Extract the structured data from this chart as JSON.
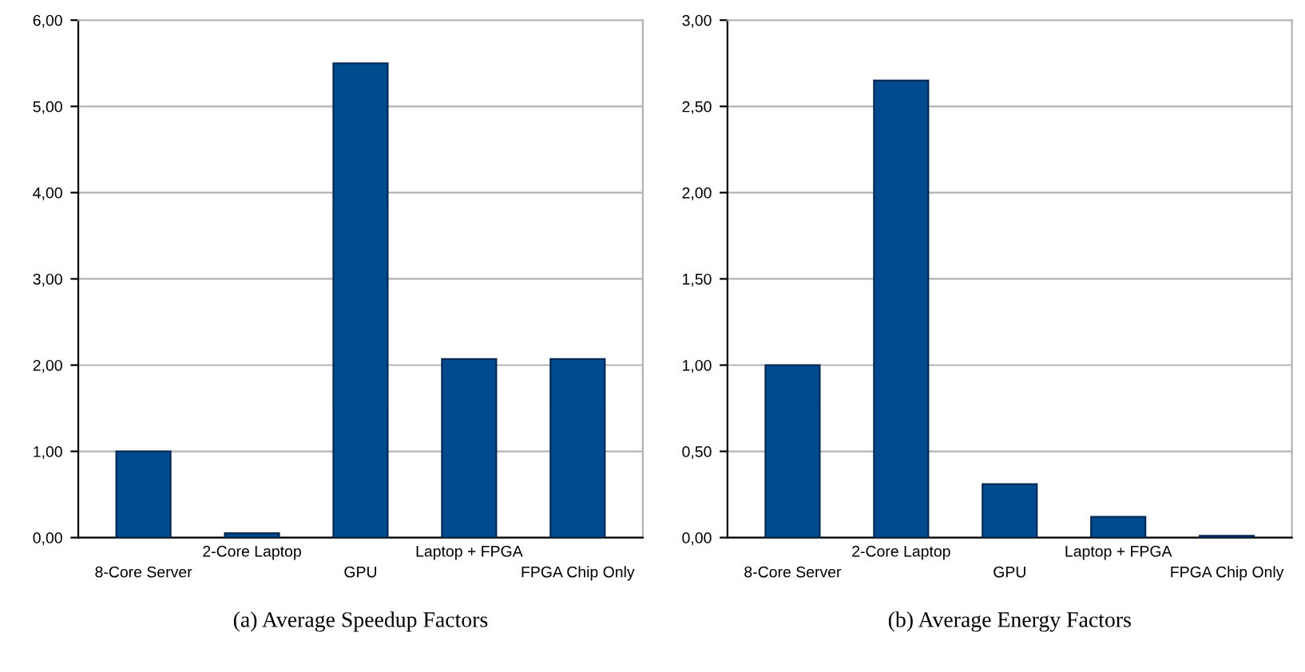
{
  "chart_data": [
    {
      "type": "bar",
      "xlabel": "(a) Average Speedup Factors",
      "categories": [
        "8-Core Server",
        "2-Core Laptop",
        "GPU",
        "Laptop + FPGA",
        "FPGA Chip Only"
      ],
      "values": [
        1.0,
        0.05,
        5.5,
        2.07,
        2.07
      ],
      "color": "#004a8f",
      "ylim": [
        0,
        6
      ],
      "yticks": [
        {
          "value": 0,
          "label": "0,00"
        },
        {
          "value": 1,
          "label": "1,00"
        },
        {
          "value": 2,
          "label": "2,00"
        },
        {
          "value": 3,
          "label": "3,00"
        },
        {
          "value": 4,
          "label": "4,00"
        },
        {
          "value": 5,
          "label": "5,00"
        },
        {
          "value": 6,
          "label": "6,00"
        }
      ],
      "grid": "y"
    },
    {
      "type": "bar",
      "xlabel": "(b) Average Energy Factors",
      "categories": [
        "8-Core Server",
        "2-Core Laptop",
        "GPU",
        "Laptop + FPGA",
        "FPGA Chip Only"
      ],
      "values": [
        1.0,
        2.65,
        0.31,
        0.12,
        0.01
      ],
      "color": "#004a8f",
      "ylim": [
        0,
        3
      ],
      "yticks": [
        {
          "value": 0,
          "label": "0,00"
        },
        {
          "value": 0.5,
          "label": "0,50"
        },
        {
          "value": 1,
          "label": "1,00"
        },
        {
          "value": 1.5,
          "label": "1,50"
        },
        {
          "value": 2,
          "label": "2,00"
        },
        {
          "value": 2.5,
          "label": "2,50"
        },
        {
          "value": 3,
          "label": "3,00"
        }
      ],
      "grid": "y"
    }
  ]
}
